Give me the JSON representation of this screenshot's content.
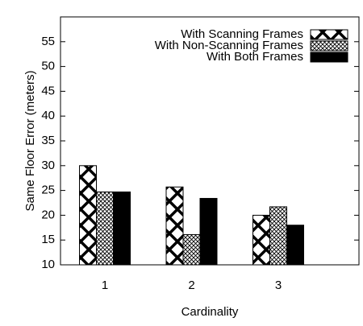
{
  "chart_data": {
    "type": "bar",
    "xlabel": "Cardinality",
    "ylabel": "Same Floor Error (meters)",
    "categories": [
      "1",
      "2",
      "3"
    ],
    "series": [
      {
        "name": "With Scanning Frames",
        "color": "#000000",
        "pattern": "big-cross",
        "values": [
          30,
          25.7,
          20
        ]
      },
      {
        "name": "With Non-Scanning Frames",
        "color": "#000000",
        "pattern": "fine-cross",
        "values": [
          24.7,
          16.1,
          21.7
        ]
      },
      {
        "name": "With Both Frames",
        "color": "#000000",
        "pattern": "solid",
        "values": [
          24.7,
          23.4,
          18
        ]
      }
    ],
    "ylim": [
      10,
      60
    ],
    "yticks": [
      10,
      15,
      20,
      25,
      30,
      35,
      40,
      45,
      50,
      55
    ],
    "legend": "top-right"
  }
}
